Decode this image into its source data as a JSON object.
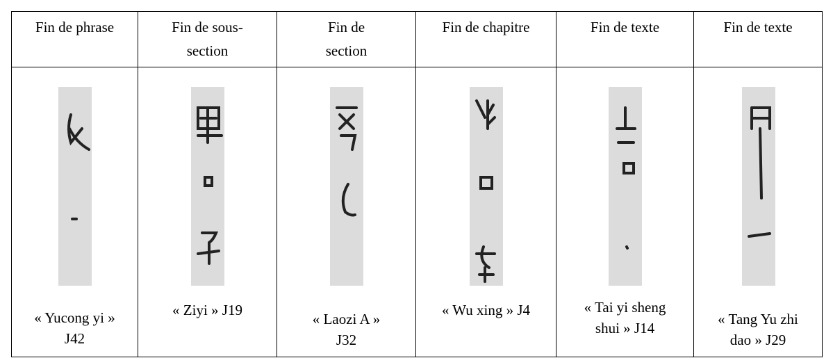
{
  "table": {
    "header": [
      [
        "Fin de phrase"
      ],
      [
        "Fin de sous-",
        "section"
      ],
      [
        "Fin de",
        "section"
      ],
      [
        "Fin de chapitre"
      ],
      [
        "Fin de texte"
      ],
      [
        "Fin de texte"
      ]
    ],
    "captions": [
      [
        "« Yucong yi »",
        "J42"
      ],
      [
        "« Ziyi » J19"
      ],
      [
        "« Laozi A »",
        "J32"
      ],
      [
        "« Wu xing » J4"
      ],
      [
        "« Tai yi sheng",
        "shui » J14"
      ],
      [
        "« Tang Yu zhi",
        "dao » J29"
      ]
    ]
  }
}
